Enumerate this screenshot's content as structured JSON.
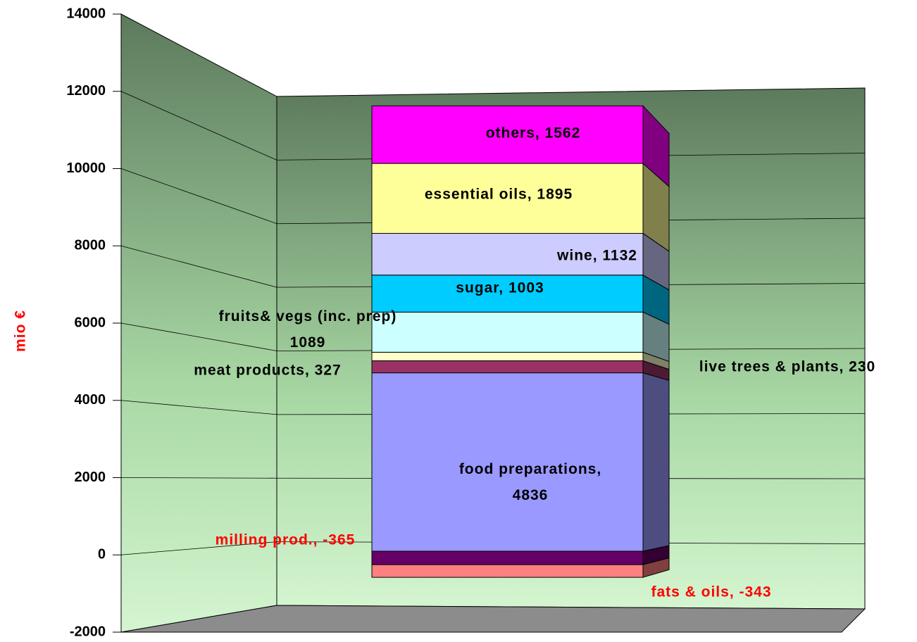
{
  "chart_data": {
    "type": "stacked-bar-3d",
    "y_label": "mio €",
    "ylim": [
      -2000,
      14000
    ],
    "yticks": [
      -2000,
      0,
      2000,
      4000,
      6000,
      8000,
      10000,
      12000,
      14000
    ],
    "grid": true,
    "series": [
      {
        "color": "#660066",
        "values": [
          -365
        ],
        "value_labels": [
          "milling prod., -365"
        ]
      },
      {
        "color": "#ff8080",
        "values": [
          -343
        ],
        "value_labels": [
          "fats & oils, -343"
        ]
      },
      {
        "color": "#9999ff",
        "values": [
          4836
        ],
        "value_labels": [
          "food preparations,\n4836"
        ]
      },
      {
        "color": "#993366",
        "values": [
          327
        ],
        "value_labels": [
          "meat products, 327"
        ]
      },
      {
        "color": "#ffffcc",
        "values": [
          230
        ],
        "value_labels": [
          "live trees & plants, 230"
        ]
      },
      {
        "color": "#ccffff",
        "values": [
          1089
        ],
        "value_labels": [
          "fruits& vegs (inc. prep)\n1089"
        ]
      },
      {
        "color": "#00ccff",
        "values": [
          1003
        ],
        "value_labels": [
          "sugar, 1003"
        ]
      },
      {
        "color": "#ccccff",
        "values": [
          1132
        ],
        "value_labels": [
          "wine, 1132"
        ]
      },
      {
        "color": "#ffff99",
        "values": [
          1895
        ],
        "value_labels": [
          "essential oils, 1895"
        ]
      },
      {
        "color": "#ff00ff",
        "values": [
          1562
        ],
        "value_labels": [
          "others, 1562"
        ]
      }
    ]
  }
}
